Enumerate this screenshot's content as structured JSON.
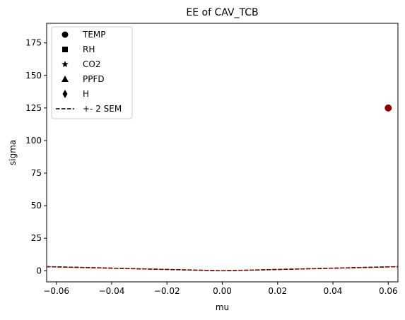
{
  "chart_data": {
    "type": "scatter",
    "title": "EE of CAV_TCB",
    "xlabel": "mu",
    "ylabel": "sigma",
    "xlim": [
      -0.0635,
      0.0635
    ],
    "ylim": [
      -8.5,
      190
    ],
    "xticks": [
      -0.06,
      -0.04,
      -0.02,
      0.0,
      0.02,
      0.04,
      0.06
    ],
    "xtick_labels": [
      "−0.06",
      "−0.04",
      "−0.02",
      "0.00",
      "0.02",
      "0.04",
      "0.06"
    ],
    "yticks": [
      0,
      25,
      50,
      75,
      100,
      125,
      150,
      175
    ],
    "ytick_labels": [
      "0",
      "25",
      "50",
      "75",
      "100",
      "125",
      "150",
      "175"
    ],
    "grid": false,
    "legend_position": "top-left",
    "legend": [
      {
        "label": "TEMP",
        "marker": "circle"
      },
      {
        "label": "RH",
        "marker": "square"
      },
      {
        "label": "CO2",
        "marker": "star"
      },
      {
        "label": "PPFD",
        "marker": "triangle"
      },
      {
        "label": "H",
        "marker": "diamond"
      },
      {
        "label": "+- 2 SEM",
        "marker": "dashed-line"
      }
    ],
    "points": [
      {
        "series": "TEMP",
        "x": 0.06,
        "y": 125,
        "color": "#8b0000"
      }
    ],
    "sem_line": {
      "label": "+- 2 SEM",
      "x": [
        -0.0635,
        0.0635
      ],
      "slope": 50,
      "colors": [
        "#000000",
        "#8b0000"
      ]
    }
  }
}
